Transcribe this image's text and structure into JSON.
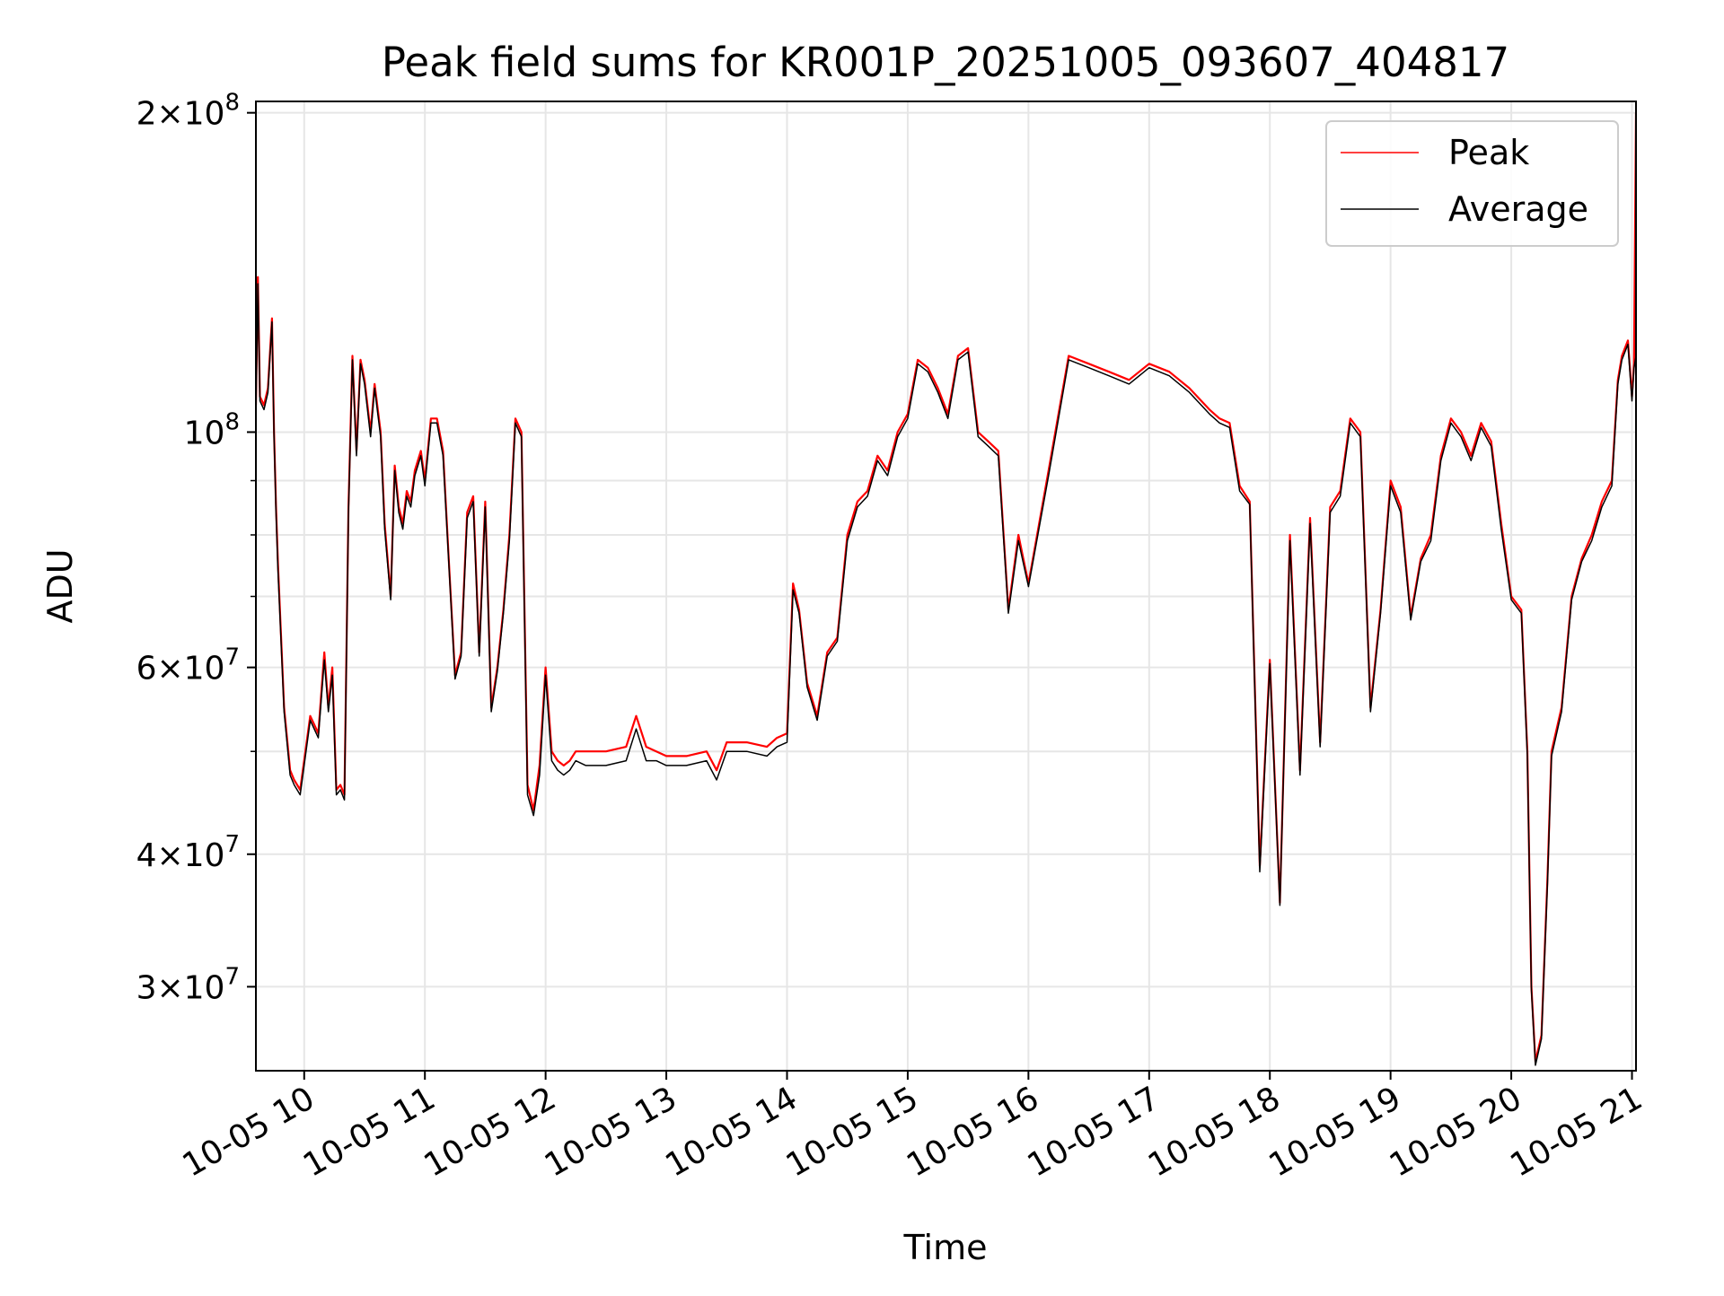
{
  "chart_data": {
    "type": "line",
    "title": "Peak field sums for KR001P_20251005_093607_404817",
    "xlabel": "Time",
    "ylabel": "ADU",
    "y_scale": "log",
    "ylim": [
      25000000,
      205000000
    ],
    "xlim": [
      "2025-10-05 09:36",
      "2025-10-05 21:02"
    ],
    "grid": true,
    "legend_position": "top-right",
    "x_ticks": [
      {
        "label": "10-05 10",
        "value": "2025-10-05 10:00"
      },
      {
        "label": "10-05 11",
        "value": "2025-10-05 11:00"
      },
      {
        "label": "10-05 12",
        "value": "2025-10-05 12:00"
      },
      {
        "label": "10-05 13",
        "value": "2025-10-05 13:00"
      },
      {
        "label": "10-05 14",
        "value": "2025-10-05 14:00"
      },
      {
        "label": "10-05 15",
        "value": "2025-10-05 15:00"
      },
      {
        "label": "10-05 16",
        "value": "2025-10-05 16:00"
      },
      {
        "label": "10-05 17",
        "value": "2025-10-05 17:00"
      },
      {
        "label": "10-05 18",
        "value": "2025-10-05 18:00"
      },
      {
        "label": "10-05 19",
        "value": "2025-10-05 19:00"
      },
      {
        "label": "10-05 20",
        "value": "2025-10-05 20:00"
      },
      {
        "label": "10-05 21",
        "value": "2025-10-05 21:00"
      }
    ],
    "y_ticks": [
      {
        "label_coef": "3",
        "label_exp": "7",
        "value": 30000000
      },
      {
        "label_coef": "4",
        "label_exp": "7",
        "value": 40000000
      },
      {
        "label_coef": "6",
        "label_exp": "7",
        "value": 60000000
      },
      {
        "label_coef": "",
        "label_exp": "8",
        "value": 100000000
      },
      {
        "label_coef": "2",
        "label_exp": "8",
        "value": 200000000
      }
    ],
    "series": [
      {
        "name": "Peak",
        "color": "#ff0000",
        "x": [
          "2025-10-05 09:36",
          "2025-10-05 09:37",
          "2025-10-05 09:38",
          "2025-10-05 09:40",
          "2025-10-05 09:42",
          "2025-10-05 09:44",
          "2025-10-05 09:45",
          "2025-10-05 09:46",
          "2025-10-05 09:47",
          "2025-10-05 09:50",
          "2025-10-05 09:53",
          "2025-10-05 09:55",
          "2025-10-05 09:58",
          "2025-10-05 10:03",
          "2025-10-05 10:07",
          "2025-10-05 10:10",
          "2025-10-05 10:12",
          "2025-10-05 10:14",
          "2025-10-05 10:16",
          "2025-10-05 10:18",
          "2025-10-05 10:20",
          "2025-10-05 10:22",
          "2025-10-05 10:24",
          "2025-10-05 10:26",
          "2025-10-05 10:28",
          "2025-10-05 10:30",
          "2025-10-05 10:33",
          "2025-10-05 10:35",
          "2025-10-05 10:38",
          "2025-10-05 10:40",
          "2025-10-05 10:43",
          "2025-10-05 10:45",
          "2025-10-05 10:47",
          "2025-10-05 10:49",
          "2025-10-05 10:51",
          "2025-10-05 10:53",
          "2025-10-05 10:55",
          "2025-10-05 10:58",
          "2025-10-05 11:00",
          "2025-10-05 11:03",
          "2025-10-05 11:06",
          "2025-10-05 11:09",
          "2025-10-05 11:12",
          "2025-10-05 11:15",
          "2025-10-05 11:18",
          "2025-10-05 11:21",
          "2025-10-05 11:24",
          "2025-10-05 11:27",
          "2025-10-05 11:30",
          "2025-10-05 11:33",
          "2025-10-05 11:36",
          "2025-10-05 11:39",
          "2025-10-05 11:42",
          "2025-10-05 11:45",
          "2025-10-05 11:48",
          "2025-10-05 11:51",
          "2025-10-05 11:54",
          "2025-10-05 11:57",
          "2025-10-05 12:00",
          "2025-10-05 12:03",
          "2025-10-05 12:06",
          "2025-10-05 12:09",
          "2025-10-05 12:12",
          "2025-10-05 12:15",
          "2025-10-05 12:20",
          "2025-10-05 12:30",
          "2025-10-05 12:40",
          "2025-10-05 12:45",
          "2025-10-05 12:50",
          "2025-10-05 12:55",
          "2025-10-05 13:00",
          "2025-10-05 13:10",
          "2025-10-05 13:20",
          "2025-10-05 13:25",
          "2025-10-05 13:30",
          "2025-10-05 13:40",
          "2025-10-05 13:50",
          "2025-10-05 13:55",
          "2025-10-05 14:00",
          "2025-10-05 14:03",
          "2025-10-05 14:06",
          "2025-10-05 14:10",
          "2025-10-05 14:15",
          "2025-10-05 14:20",
          "2025-10-05 14:25",
          "2025-10-05 14:30",
          "2025-10-05 14:35",
          "2025-10-05 14:40",
          "2025-10-05 14:45",
          "2025-10-05 14:50",
          "2025-10-05 14:55",
          "2025-10-05 15:00",
          "2025-10-05 15:05",
          "2025-10-05 15:10",
          "2025-10-05 15:15",
          "2025-10-05 15:20",
          "2025-10-05 15:25",
          "2025-10-05 15:30",
          "2025-10-05 15:35",
          "2025-10-05 15:40",
          "2025-10-05 15:45",
          "2025-10-05 15:50",
          "2025-10-05 15:55",
          "2025-10-05 16:00",
          "2025-10-05 16:10",
          "2025-10-05 16:20",
          "2025-10-05 16:30",
          "2025-10-05 16:40",
          "2025-10-05 16:50",
          "2025-10-05 17:00",
          "2025-10-05 17:10",
          "2025-10-05 17:20",
          "2025-10-05 17:30",
          "2025-10-05 17:35",
          "2025-10-05 17:40",
          "2025-10-05 17:45",
          "2025-10-05 17:50",
          "2025-10-05 17:55",
          "2025-10-05 18:00",
          "2025-10-05 18:05",
          "2025-10-05 18:10",
          "2025-10-05 18:15",
          "2025-10-05 18:20",
          "2025-10-05 18:25",
          "2025-10-05 18:30",
          "2025-10-05 18:35",
          "2025-10-05 18:40",
          "2025-10-05 18:45",
          "2025-10-05 18:50",
          "2025-10-05 18:55",
          "2025-10-05 19:00",
          "2025-10-05 19:05",
          "2025-10-05 19:10",
          "2025-10-05 19:15",
          "2025-10-05 19:20",
          "2025-10-05 19:25",
          "2025-10-05 19:30",
          "2025-10-05 19:35",
          "2025-10-05 19:40",
          "2025-10-05 19:45",
          "2025-10-05 19:50",
          "2025-10-05 19:55",
          "2025-10-05 20:00",
          "2025-10-05 20:05",
          "2025-10-05 20:08",
          "2025-10-05 20:10",
          "2025-10-05 20:12",
          "2025-10-05 20:15",
          "2025-10-05 20:18",
          "2025-10-05 20:20",
          "2025-10-05 20:25",
          "2025-10-05 20:30",
          "2025-10-05 20:35",
          "2025-10-05 20:40",
          "2025-10-05 20:45",
          "2025-10-05 20:50",
          "2025-10-05 20:53",
          "2025-10-05 20:55",
          "2025-10-05 20:58",
          "2025-10-05 21:00",
          "2025-10-05 21:01",
          "2025-10-05 21:02"
        ],
        "values": [
          106000000,
          140000000,
          108000000,
          106000000,
          110000000,
          128000000,
          100000000,
          85000000,
          75000000,
          55000000,
          48000000,
          47000000,
          46000000,
          54000000,
          52000000,
          62000000,
          55000000,
          60000000,
          46000000,
          46500000,
          45500000,
          85000000,
          118000000,
          96000000,
          117000000,
          112000000,
          100000000,
          111000000,
          100000000,
          82000000,
          70000000,
          93000000,
          85000000,
          82000000,
          88000000,
          86000000,
          92000000,
          96000000,
          90000000,
          103000000,
          103000000,
          96000000,
          75000000,
          59000000,
          62000000,
          84000000,
          87000000,
          62000000,
          86000000,
          55000000,
          60000000,
          68000000,
          80000000,
          103000000,
          100000000,
          46500000,
          44000000,
          48500000,
          60000000,
          50000000,
          49000000,
          48500000,
          49000000,
          50000000,
          50000000,
          50000000,
          50500000,
          54000000,
          50500000,
          50000000,
          49500000,
          49500000,
          50000000,
          48000000,
          51000000,
          51000000,
          50500000,
          51500000,
          52000000,
          72000000,
          68000000,
          58000000,
          54000000,
          62000000,
          64000000,
          80000000,
          86000000,
          88000000,
          95000000,
          92000000,
          100000000,
          104000000,
          117000000,
          115000000,
          110000000,
          104000000,
          118000000,
          120000000,
          100000000,
          98000000,
          96000000,
          68000000,
          80000000,
          72000000,
          92000000,
          118000000,
          116000000,
          114000000,
          112000000,
          116000000,
          114000000,
          110000000,
          105000000,
          103000000,
          102000000,
          89000000,
          86000000,
          39000000,
          61000000,
          36000000,
          80000000,
          48000000,
          83000000,
          51000000,
          85000000,
          88000000,
          103000000,
          100000000,
          55000000,
          68000000,
          90000000,
          85000000,
          67000000,
          76000000,
          80000000,
          95000000,
          103000000,
          100000000,
          95000000,
          102000000,
          98000000,
          82000000,
          70000000,
          68000000,
          50000000,
          30000000,
          25500000,
          27000000,
          38000000,
          50000000,
          55000000,
          70000000,
          76000000,
          80000000,
          86000000,
          90000000,
          112000000,
          118000000,
          122000000,
          108000000,
          116000000,
          200000000
        ]
      },
      {
        "name": "Average",
        "color": "#000000",
        "x": [
          "2025-10-05 09:36",
          "2025-10-05 09:37",
          "2025-10-05 09:38",
          "2025-10-05 09:40",
          "2025-10-05 09:42",
          "2025-10-05 09:44",
          "2025-10-05 09:45",
          "2025-10-05 09:46",
          "2025-10-05 09:47",
          "2025-10-05 09:50",
          "2025-10-05 09:53",
          "2025-10-05 09:55",
          "2025-10-05 09:58",
          "2025-10-05 10:03",
          "2025-10-05 10:07",
          "2025-10-05 10:10",
          "2025-10-05 10:12",
          "2025-10-05 10:14",
          "2025-10-05 10:16",
          "2025-10-05 10:18",
          "2025-10-05 10:20",
          "2025-10-05 10:22",
          "2025-10-05 10:24",
          "2025-10-05 10:26",
          "2025-10-05 10:28",
          "2025-10-05 10:30",
          "2025-10-05 10:33",
          "2025-10-05 10:35",
          "2025-10-05 10:38",
          "2025-10-05 10:40",
          "2025-10-05 10:43",
          "2025-10-05 10:45",
          "2025-10-05 10:47",
          "2025-10-05 10:49",
          "2025-10-05 10:51",
          "2025-10-05 10:53",
          "2025-10-05 10:55",
          "2025-10-05 10:58",
          "2025-10-05 11:00",
          "2025-10-05 11:03",
          "2025-10-05 11:06",
          "2025-10-05 11:09",
          "2025-10-05 11:12",
          "2025-10-05 11:15",
          "2025-10-05 11:18",
          "2025-10-05 11:21",
          "2025-10-05 11:24",
          "2025-10-05 11:27",
          "2025-10-05 11:30",
          "2025-10-05 11:33",
          "2025-10-05 11:36",
          "2025-10-05 11:39",
          "2025-10-05 11:42",
          "2025-10-05 11:45",
          "2025-10-05 11:48",
          "2025-10-05 11:51",
          "2025-10-05 11:54",
          "2025-10-05 11:57",
          "2025-10-05 12:00",
          "2025-10-05 12:03",
          "2025-10-05 12:06",
          "2025-10-05 12:09",
          "2025-10-05 12:12",
          "2025-10-05 12:15",
          "2025-10-05 12:20",
          "2025-10-05 12:30",
          "2025-10-05 12:40",
          "2025-10-05 12:45",
          "2025-10-05 12:50",
          "2025-10-05 12:55",
          "2025-10-05 13:00",
          "2025-10-05 13:10",
          "2025-10-05 13:20",
          "2025-10-05 13:25",
          "2025-10-05 13:30",
          "2025-10-05 13:40",
          "2025-10-05 13:50",
          "2025-10-05 13:55",
          "2025-10-05 14:00",
          "2025-10-05 14:03",
          "2025-10-05 14:06",
          "2025-10-05 14:10",
          "2025-10-05 14:15",
          "2025-10-05 14:20",
          "2025-10-05 14:25",
          "2025-10-05 14:30",
          "2025-10-05 14:35",
          "2025-10-05 14:40",
          "2025-10-05 14:45",
          "2025-10-05 14:50",
          "2025-10-05 14:55",
          "2025-10-05 15:00",
          "2025-10-05 15:05",
          "2025-10-05 15:10",
          "2025-10-05 15:15",
          "2025-10-05 15:20",
          "2025-10-05 15:25",
          "2025-10-05 15:30",
          "2025-10-05 15:35",
          "2025-10-05 15:40",
          "2025-10-05 15:45",
          "2025-10-05 15:50",
          "2025-10-05 15:55",
          "2025-10-05 16:00",
          "2025-10-05 16:10",
          "2025-10-05 16:20",
          "2025-10-05 16:30",
          "2025-10-05 16:40",
          "2025-10-05 16:50",
          "2025-10-05 17:00",
          "2025-10-05 17:10",
          "2025-10-05 17:20",
          "2025-10-05 17:30",
          "2025-10-05 17:35",
          "2025-10-05 17:40",
          "2025-10-05 17:45",
          "2025-10-05 17:50",
          "2025-10-05 17:55",
          "2025-10-05 18:00",
          "2025-10-05 18:05",
          "2025-10-05 18:10",
          "2025-10-05 18:15",
          "2025-10-05 18:20",
          "2025-10-05 18:25",
          "2025-10-05 18:30",
          "2025-10-05 18:35",
          "2025-10-05 18:40",
          "2025-10-05 18:45",
          "2025-10-05 18:50",
          "2025-10-05 18:55",
          "2025-10-05 19:00",
          "2025-10-05 19:05",
          "2025-10-05 19:10",
          "2025-10-05 19:15",
          "2025-10-05 19:20",
          "2025-10-05 19:25",
          "2025-10-05 19:30",
          "2025-10-05 19:35",
          "2025-10-05 19:40",
          "2025-10-05 19:45",
          "2025-10-05 19:50",
          "2025-10-05 19:55",
          "2025-10-05 20:00",
          "2025-10-05 20:05",
          "2025-10-05 20:08",
          "2025-10-05 20:10",
          "2025-10-05 20:12",
          "2025-10-05 20:15",
          "2025-10-05 20:18",
          "2025-10-05 20:20",
          "2025-10-05 20:25",
          "2025-10-05 20:30",
          "2025-10-05 20:35",
          "2025-10-05 20:40",
          "2025-10-05 20:45",
          "2025-10-05 20:50",
          "2025-10-05 20:53",
          "2025-10-05 20:55",
          "2025-10-05 20:58",
          "2025-10-05 21:00",
          "2025-10-05 21:01",
          "2025-10-05 21:02"
        ],
        "values": [
          104000000,
          138000000,
          107000000,
          105000000,
          109000000,
          127000000,
          99000000,
          84000000,
          74000000,
          54500000,
          47500000,
          46500000,
          45500000,
          53500000,
          51500000,
          61000000,
          54500000,
          59000000,
          45500000,
          46000000,
          45000000,
          84000000,
          117000000,
          95000000,
          116000000,
          111000000,
          99000000,
          110000000,
          99000000,
          81000000,
          69500000,
          92000000,
          84000000,
          81000000,
          87000000,
          85000000,
          91000000,
          95000000,
          89000000,
          102000000,
          102000000,
          95000000,
          74500000,
          58500000,
          61500000,
          83000000,
          86000000,
          61500000,
          85000000,
          54500000,
          59500000,
          67500000,
          79000000,
          102000000,
          99000000,
          45500000,
          43500000,
          47500000,
          59000000,
          49000000,
          48000000,
          47500000,
          48000000,
          49000000,
          48500000,
          48500000,
          49000000,
          52500000,
          49000000,
          49000000,
          48500000,
          48500000,
          49000000,
          47000000,
          50000000,
          50000000,
          49500000,
          50500000,
          51000000,
          71000000,
          67500000,
          57500000,
          53500000,
          61500000,
          63500000,
          79000000,
          85000000,
          87000000,
          94000000,
          91000000,
          99000000,
          103000000,
          116000000,
          114000000,
          109000000,
          103000000,
          117000000,
          119000000,
          99000000,
          97000000,
          95000000,
          67500000,
          79000000,
          71500000,
          91000000,
          117000000,
          115000000,
          113000000,
          111000000,
          115000000,
          113000000,
          109000000,
          104000000,
          102000000,
          101000000,
          88000000,
          85500000,
          38500000,
          60500000,
          35800000,
          79000000,
          47500000,
          82000000,
          50500000,
          84000000,
          87000000,
          102000000,
          99000000,
          54500000,
          67500000,
          89000000,
          84000000,
          66500000,
          75500000,
          79000000,
          94000000,
          102000000,
          99000000,
          94000000,
          101000000,
          97000000,
          81000000,
          69500000,
          67500000,
          49500000,
          29800000,
          25300000,
          26800000,
          37500000,
          49500000,
          54500000,
          69500000,
          75500000,
          79000000,
          85000000,
          89000000,
          111000000,
          117000000,
          121000000,
          107000000,
          115000000,
          118000000
        ]
      }
    ]
  }
}
